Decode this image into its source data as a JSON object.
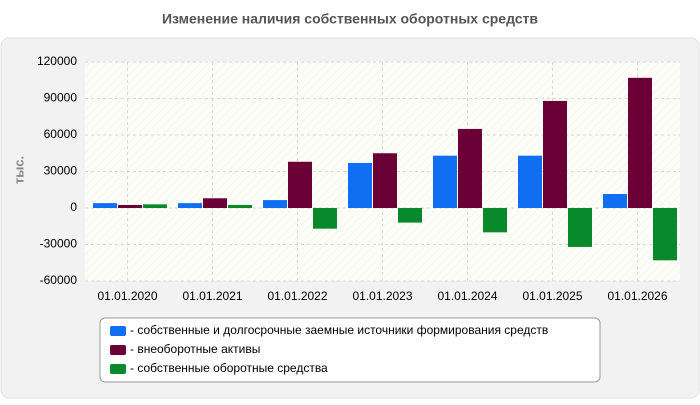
{
  "chart_data": {
    "type": "bar",
    "title": "Изменение наличия собственных оборотных средств",
    "y_label": "тыс.",
    "categories": [
      "01.01.2020",
      "01.01.2021",
      "01.01.2022",
      "01.01.2023",
      "01.01.2024",
      "01.01.2025",
      "01.01.2026"
    ],
    "series": [
      {
        "name": "- собственные и долгосрочные заемные источники формирования средств",
        "color": "#0f6ef2",
        "values": [
          4000,
          4000,
          6500,
          37000,
          43000,
          43000,
          11500
        ]
      },
      {
        "name": "- внеоборотные активы",
        "color": "#6a0035",
        "values": [
          2500,
          8000,
          38000,
          45000,
          65000,
          88000,
          107000
        ]
      },
      {
        "name": "- собственные оборотные средства",
        "color": "#088a2c",
        "values": [
          3000,
          2500,
          -17000,
          -12000,
          -20000,
          -32000,
          -43000
        ]
      }
    ],
    "ylim": [
      -60000,
      120000
    ],
    "yticks": [
      -60000,
      -30000,
      0,
      30000,
      60000,
      90000,
      120000
    ],
    "grid": true
  }
}
